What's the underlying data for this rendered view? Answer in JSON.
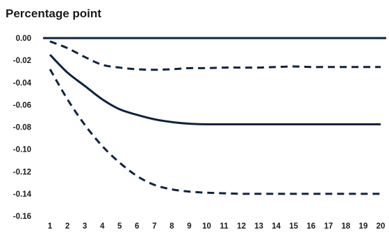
{
  "chart_data": {
    "type": "line",
    "title": "Percentage point",
    "xlabel": "",
    "ylabel": "",
    "x": [
      1,
      2,
      3,
      4,
      5,
      6,
      7,
      8,
      9,
      10,
      11,
      12,
      13,
      14,
      15,
      16,
      17,
      18,
      19,
      20
    ],
    "ylim": [
      -0.16,
      0.0
    ],
    "yticks": [
      "0.00",
      "-0.02",
      "-0.04",
      "-0.06",
      "-0.08",
      "-0.10",
      "-0.12",
      "-0.14",
      "-0.16"
    ],
    "xticks": [
      "1",
      "2",
      "3",
      "4",
      "5",
      "6",
      "7",
      "8",
      "9",
      "10",
      "11",
      "12",
      "13",
      "14",
      "15",
      "16",
      "17",
      "18",
      "19",
      "20"
    ],
    "grid": false,
    "legend": "none",
    "color": "#0d2240",
    "zero_line": 0.0,
    "series": [
      {
        "style": "solid",
        "values": [
          -0.015,
          -0.031,
          -0.043,
          -0.055,
          -0.064,
          -0.069,
          -0.073,
          -0.0755,
          -0.077,
          -0.0775,
          -0.0775,
          -0.0775,
          -0.0775,
          -0.0775,
          -0.0775,
          -0.0775,
          -0.0775,
          -0.0775,
          -0.0775,
          -0.0775
        ]
      },
      {
        "style": "dashed",
        "values": [
          -0.003,
          -0.009,
          -0.017,
          -0.024,
          -0.0265,
          -0.028,
          -0.0285,
          -0.028,
          -0.027,
          -0.027,
          -0.0265,
          -0.0265,
          -0.0265,
          -0.026,
          -0.0255,
          -0.026,
          -0.026,
          -0.026,
          -0.026,
          -0.026
        ]
      },
      {
        "style": "dashed",
        "values": [
          -0.028,
          -0.055,
          -0.078,
          -0.097,
          -0.112,
          -0.124,
          -0.132,
          -0.136,
          -0.138,
          -0.139,
          -0.1395,
          -0.14,
          -0.14,
          -0.14,
          -0.14,
          -0.14,
          -0.14,
          -0.14,
          -0.14,
          -0.14
        ]
      }
    ]
  }
}
